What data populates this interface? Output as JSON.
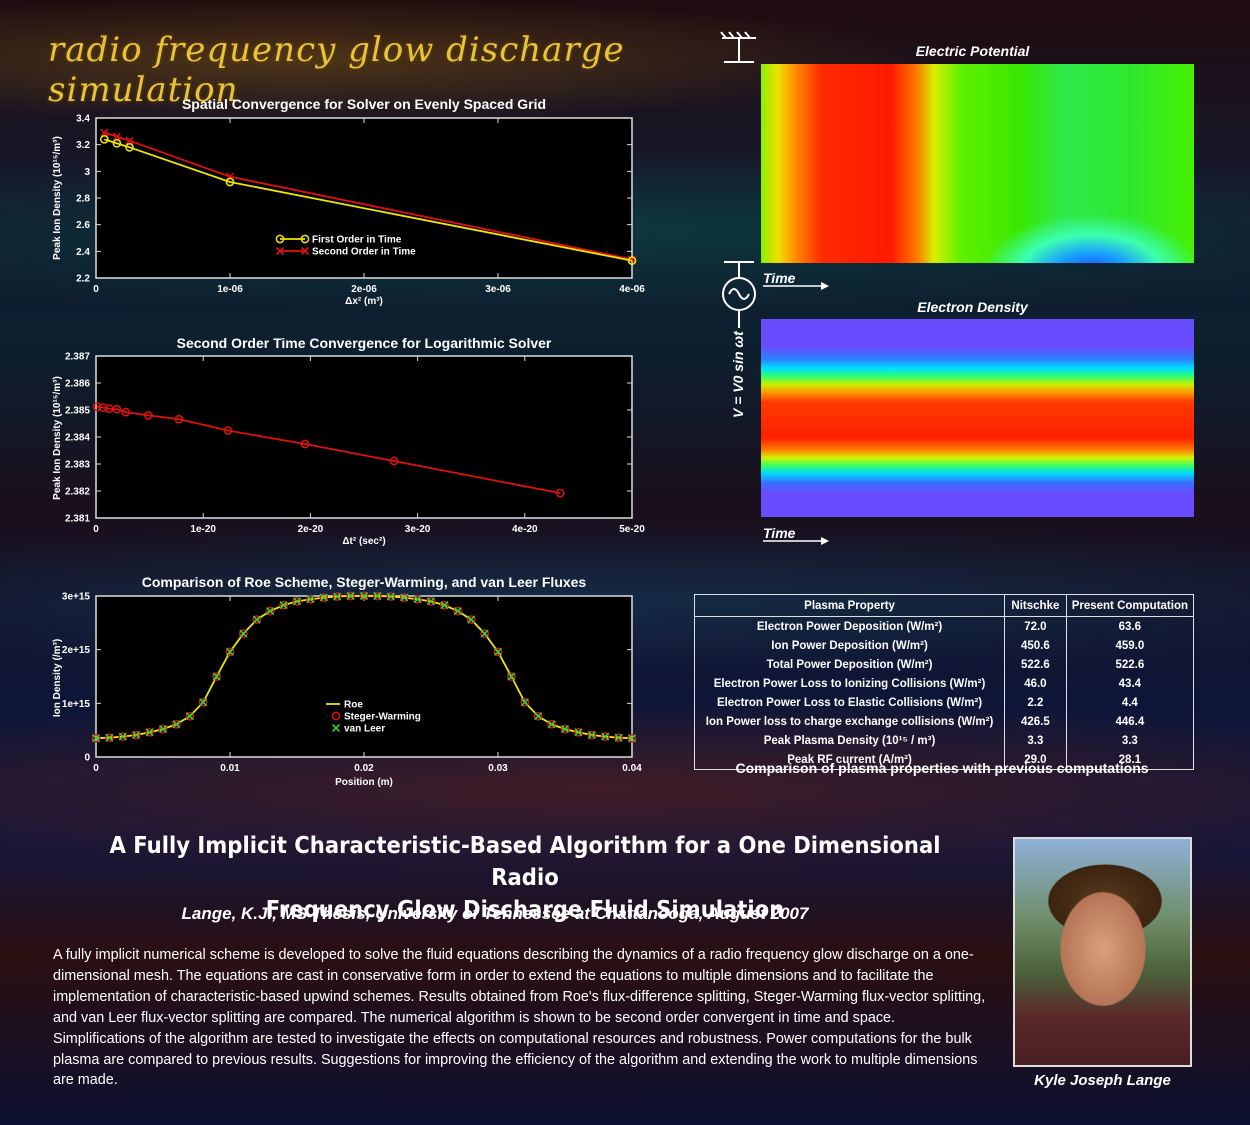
{
  "header": {
    "title": "radio frequency glow discharge simulation"
  },
  "colors": {
    "yellow_series": "#f2e600",
    "red_series": "#e01010",
    "green_marker": "#38c83a",
    "title_gold": "#e8c23a"
  },
  "chart_data": [
    {
      "type": "line",
      "title": "Spatial Convergence for Solver on Evenly Spaced Grid",
      "xlabel": "Δx² (m³)",
      "ylabel": "Peak Ion Density (10¹⁵/m³)",
      "xlim": [
        0,
        4e-06
      ],
      "ylim": [
        2.2,
        3.4
      ],
      "xticks": [
        "0",
        "1e-06",
        "2e-06",
        "3e-06",
        "4e-06"
      ],
      "yticks": [
        "2.2",
        "2.4",
        "2.6",
        "2.8",
        "3",
        "3.2",
        "3.4"
      ],
      "legend_position": "center",
      "series": [
        {
          "name": "First Order in Time",
          "marker": "circle",
          "color": "#f2e600",
          "x": [
            6.25e-08,
            1.5625e-07,
            2.5e-07,
            1e-06,
            4e-06
          ],
          "y": [
            3.24,
            3.21,
            3.18,
            2.92,
            2.33
          ]
        },
        {
          "name": "Second Order in Time",
          "marker": "x",
          "color": "#e01010",
          "x": [
            6.25e-08,
            1.5625e-07,
            2.5e-07,
            1e-06,
            4e-06
          ],
          "y": [
            3.29,
            3.26,
            3.23,
            2.96,
            2.34
          ]
        }
      ]
    },
    {
      "type": "line",
      "title": "Second Order Time Convergence for Logarithmic Solver",
      "xlabel": "Δt² (sec²)",
      "ylabel": "Peak Ion Density (10¹⁵/m³)",
      "xlim": [
        0,
        5e-20
      ],
      "ylim": [
        2.381,
        2.387
      ],
      "xticks": [
        "0",
        "1e-20",
        "2e-20",
        "3e-20",
        "4e-20",
        "5e-20"
      ],
      "yticks": [
        "2.381",
        "2.382",
        "2.383",
        "2.384",
        "2.385",
        "2.386",
        "2.387"
      ],
      "series": [
        {
          "marker": "circle",
          "color": "#e01010",
          "x": [
            1e-22,
            6.8e-22,
            1.23e-21,
            1.95e-21,
            2.78e-21,
            4.88e-21,
            7.73e-21,
            1.23e-20,
            1.95e-20,
            2.78e-20,
            4.33e-20
          ],
          "y": [
            2.38512,
            2.38509,
            2.38505,
            2.38503,
            2.38492,
            2.3848,
            2.38466,
            2.38424,
            2.38374,
            2.38311,
            2.38192
          ]
        }
      ]
    },
    {
      "type": "line",
      "title": "Comparison of Roe Scheme, Steger-Warming, and van Leer Fluxes",
      "xlabel": "Position (m)",
      "ylabel": "Ion Density (/m³)",
      "xlim": [
        0,
        0.04
      ],
      "ylim": [
        0,
        3000000000000000.0
      ],
      "xticks": [
        "0",
        "0.01",
        "0.02",
        "0.03",
        "0.04"
      ],
      "yticks": [
        "0",
        "1e+15",
        "2e+15",
        "3e+15"
      ],
      "legend_position": "bottom-center",
      "x": [
        0,
        0.001,
        0.002,
        0.003,
        0.004,
        0.005,
        0.006,
        0.007,
        0.008,
        0.009,
        0.01,
        0.011,
        0.012,
        0.013,
        0.014,
        0.015,
        0.016,
        0.017,
        0.018,
        0.019,
        0.02,
        0.021,
        0.022,
        0.023,
        0.024,
        0.025,
        0.026,
        0.027,
        0.028,
        0.029,
        0.03,
        0.031,
        0.032,
        0.033,
        0.034,
        0.035,
        0.036,
        0.037,
        0.038,
        0.039,
        0.04
      ],
      "series": [
        {
          "name": "Roe",
          "style": "line",
          "color": "#f2e600",
          "values": [
            350000000000000.0,
            360000000000000.0,
            380000000000000.0,
            410000000000000.0,
            460000000000000.0,
            520000000000000.0,
            610000000000000.0,
            760000000000000.0,
            1020000000000000.0,
            1500000000000000.0,
            1960000000000000.0,
            2300000000000000.0,
            2560000000000000.0,
            2720000000000000.0,
            2830000000000000.0,
            2900000000000000.0,
            2940000000000000.0,
            2970000000000000.0,
            2990000000000000.0,
            3000000000000000.0,
            3000000000000000.0,
            3000000000000000.0,
            2990000000000000.0,
            2970000000000000.0,
            2940000000000000.0,
            2900000000000000.0,
            2830000000000000.0,
            2720000000000000.0,
            2560000000000000.0,
            2300000000000000.0,
            1960000000000000.0,
            1500000000000000.0,
            1020000000000000.0,
            760000000000000.0,
            610000000000000.0,
            520000000000000.0,
            460000000000000.0,
            410000000000000.0,
            380000000000000.0,
            360000000000000.0,
            350000000000000.0
          ]
        },
        {
          "name": "Steger-Warming",
          "style": "circle",
          "color": "#e01010"
        },
        {
          "name": "van Leer",
          "style": "x",
          "color": "#38c83a"
        }
      ]
    }
  ],
  "right_panel": {
    "electric_potential_title": "Electric Potential",
    "electron_density_title": "Electron Density",
    "time_label_1": "Time",
    "time_label_2": "Time",
    "voltage_formula": "V = V0 sin ωt",
    "icons": [
      "ground-icon",
      "ac-source-icon"
    ]
  },
  "table": {
    "headers": [
      "Plasma Property",
      "Nitschke",
      "Present Computation"
    ],
    "rows": [
      [
        "Electron Power Deposition (W/m²)",
        "72.0",
        "63.6"
      ],
      [
        "Ion Power Deposition (W/m²)",
        "450.6",
        "459.0"
      ],
      [
        "Total Power Deposition (W/m²)",
        "522.6",
        "522.6"
      ],
      [
        "Electron Power Loss to Ionizing Collisions (W/m²)",
        "46.0",
        "43.4"
      ],
      [
        "Electron Power Loss to Elastic Collisions (W/m²)",
        "2.2",
        "4.4"
      ],
      [
        "Ion Power loss to charge exchange collisions  (W/m²)",
        "426.5",
        "446.4"
      ],
      [
        "Peak Plasma Density  (10¹⁵ / m³)",
        "3.3",
        "3.3"
      ],
      [
        "Peak RF current (A/m²)",
        "29.0",
        "28.1"
      ]
    ],
    "caption": "Comparison of plasma properties with previous computations"
  },
  "thesis": {
    "title_line1": "A Fully Implicit Characteristic-Based Algorithm for a One Dimensional Radio",
    "title_line2": "Frequency Glow Discharge Fluid Simulation",
    "byline": "Lange, K.J., MS Thesis, University of Tennessee at Chattanooga,  August 2007",
    "abstract": "A fully implicit numerical scheme is developed to solve the fluid equations describing the dynamics of a radio frequency glow discharge on a one-dimensional mesh. The equations are cast in conservative form in order to extend the equations to multiple dimensions and to facilitate the implementation of characteristic-based upwind schemes. Results obtained from Roe's flux-difference splitting, Steger-Warming flux-vector splitting, and van Leer flux-vector splitting are compared. The numerical algorithm is shown to be second order convergent in time and space. Simplifications of the algorithm are tested to investigate the effects on computational resources and robustness. Power computations for the bulk plasma are compared to previous results. Suggestions for improving the efficiency of the algorithm and extending the work to multiple dimensions are made."
  },
  "author": {
    "name": "Kyle Joseph Lange"
  }
}
